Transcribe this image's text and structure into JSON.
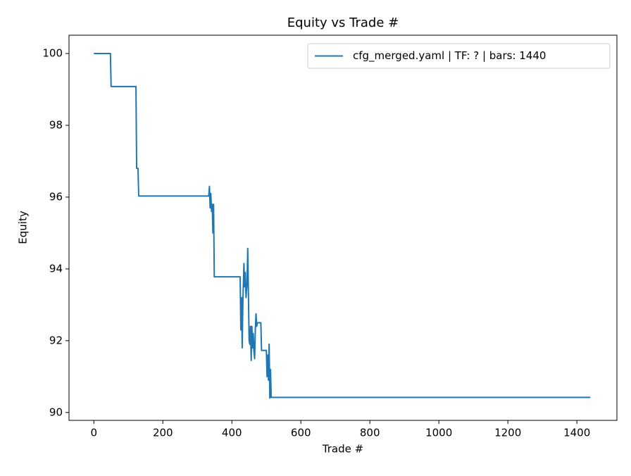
{
  "chart_data": {
    "type": "line",
    "title": "Equity vs Trade #",
    "x_label": "Trade #",
    "y_label": "Equity",
    "x": [
      0,
      48,
      50,
      122,
      124,
      128,
      130,
      333,
      335,
      337,
      339,
      341,
      343,
      345,
      347,
      349,
      424,
      426,
      428,
      430,
      432,
      435,
      437,
      439,
      441,
      444,
      446,
      448,
      450,
      452,
      454,
      456,
      458,
      460,
      462,
      464,
      466,
      468,
      470,
      472,
      474,
      484,
      486,
      500,
      502,
      504,
      506,
      508,
      510,
      512,
      514,
      1439
    ],
    "series": [
      {
        "name": "cfg_merged.yaml | TF: ? | bars: 1440",
        "color": "#1f77b4",
        "values": [
          100,
          100,
          99.08,
          99.08,
          96.8,
          96.8,
          96.03,
          96.03,
          96.3,
          95.7,
          96.1,
          95.6,
          95.8,
          95.0,
          95.8,
          93.78,
          93.78,
          92.3,
          93.2,
          91.8,
          93.1,
          94.15,
          93.5,
          93.9,
          93.2,
          93.6,
          94.57,
          93.3,
          92.0,
          91.9,
          92.4,
          91.45,
          92.4,
          91.8,
          92.2,
          91.7,
          91.5,
          92.3,
          92.75,
          92.4,
          92.5,
          92.5,
          91.73,
          91.73,
          91.0,
          91.6,
          90.9,
          91.9,
          90.4,
          91.2,
          90.42,
          90.42
        ]
      }
    ],
    "xlim": [
      -72,
      1516
    ],
    "ylim": [
      89.78,
      100.51
    ],
    "xticks": [
      0,
      200,
      400,
      600,
      800,
      1000,
      1200,
      1400
    ],
    "yticks": [
      90,
      92,
      94,
      96,
      98,
      100
    ],
    "grid": false,
    "legend": "upper right"
  }
}
